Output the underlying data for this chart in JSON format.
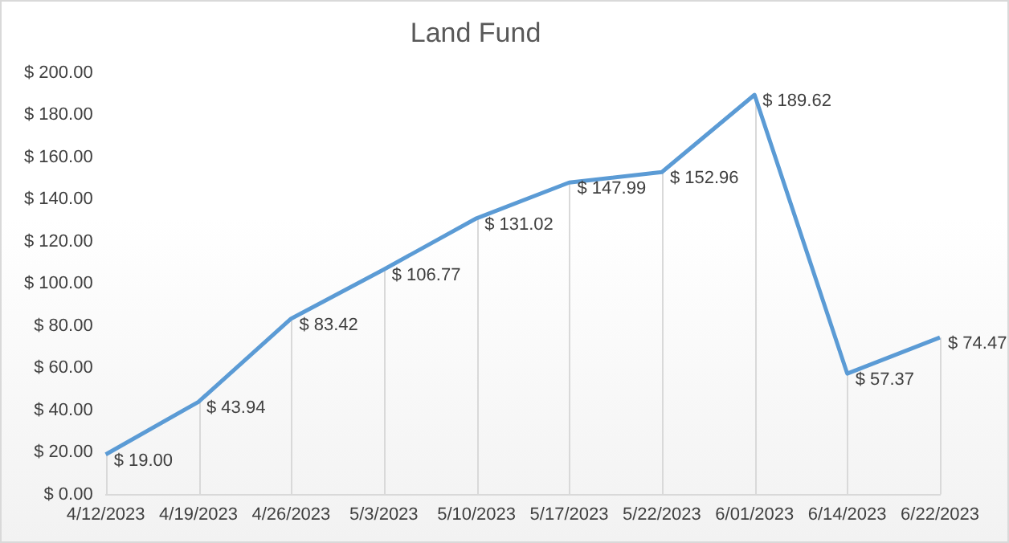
{
  "chart_data": {
    "type": "line",
    "title": "Land Fund",
    "categories": [
      "4/12/2023",
      "4/19/2023",
      "4/26/2023",
      "5/3/2023",
      "5/10/2023",
      "5/17/2023",
      "5/22/2023",
      "6/01/2023",
      "6/14/2023",
      "6/22/2023"
    ],
    "series": [
      {
        "color": "#5b9bd5",
        "values": [
          19.0,
          43.94,
          83.42,
          106.77,
          131.02,
          147.99,
          152.96,
          189.62,
          57.37,
          74.47
        ],
        "value_labels": [
          "$ 19.00",
          "$ 43.94",
          "$ 83.42",
          "$ 106.77",
          "$ 131.02",
          "$ 147.99",
          "$ 152.96",
          "$ 189.62",
          "$ 57.37",
          "$ 74.47"
        ]
      }
    ],
    "ylim": [
      0,
      200
    ],
    "yticks": [
      {
        "value": 0,
        "label": "$ 0.00"
      },
      {
        "value": 20,
        "label": "$ 20.00"
      },
      {
        "value": 40,
        "label": "$ 40.00"
      },
      {
        "value": 60,
        "label": "$ 60.00"
      },
      {
        "value": 80,
        "label": "$ 80.00"
      },
      {
        "value": 100,
        "label": "$ 100.00"
      },
      {
        "value": 120,
        "label": "$ 120.00"
      },
      {
        "value": 140,
        "label": "$ 140.00"
      },
      {
        "value": 160,
        "label": "$ 160.00"
      },
      {
        "value": 180,
        "label": "$ 180.00"
      },
      {
        "value": 200,
        "label": "$ 200.00"
      }
    ],
    "grid": "x",
    "legend": false,
    "marker": "none",
    "line_style": "solid"
  }
}
